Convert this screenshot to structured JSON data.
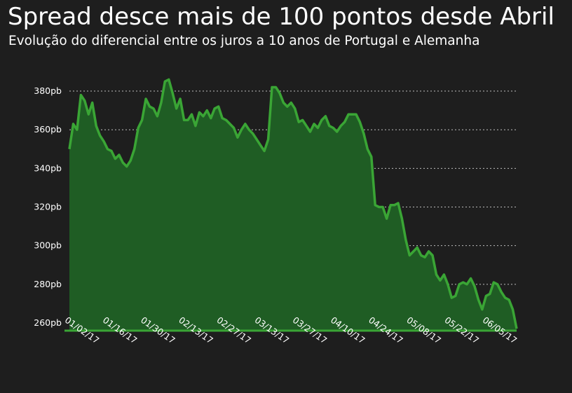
{
  "title": "Spread desce mais de 100 pontos desde Abril",
  "subtitle": "Evolução do diferencial entre os juros a 10 anos de Portugal e Alemanha",
  "colors": {
    "background": "#1e1e1e",
    "line": "#3aa535",
    "fill": "#1f5d24",
    "grid": "#bdbdbd",
    "text": "#ffffff"
  },
  "chart_data": {
    "type": "area",
    "title": "Spread desce mais de 100 pontos desde Abril",
    "subtitle": "Evolução do diferencial entre os juros a 10 anos de Portugal e Alemanha",
    "xlabel": "",
    "ylabel": "",
    "ylim": [
      256,
      388
    ],
    "y_ticks": [
      260,
      280,
      300,
      320,
      340,
      360,
      380
    ],
    "y_tick_labels": [
      "260pb",
      "280pb",
      "300pb",
      "320pb",
      "340pb",
      "360pb",
      "380pb"
    ],
    "x_tick_labels": [
      "01/02/17",
      "01/16/17",
      "01/30/17",
      "02/13/17",
      "02/27/17",
      "03/13/17",
      "03/27/17",
      "04/10/17",
      "04/24/17",
      "05/08/17",
      "05/22/17",
      "06/05/17"
    ],
    "grid": "horizontal dotted",
    "legend": "none",
    "series": [
      {
        "values": [
          350,
          363,
          360,
          378,
          375,
          368,
          374,
          362,
          357,
          354,
          350,
          349,
          345,
          347,
          343,
          341,
          344,
          350,
          361,
          365,
          376,
          372,
          371,
          367,
          374,
          385,
          386,
          379,
          371,
          376,
          365,
          365,
          368,
          362,
          369,
          367,
          370,
          366,
          371,
          372,
          366,
          365,
          363,
          361,
          356,
          360,
          363,
          360,
          358,
          355,
          352,
          349,
          355,
          382,
          382,
          379,
          374,
          372,
          374,
          371,
          364,
          365,
          362,
          359,
          363,
          361,
          365,
          367,
          362,
          361,
          359,
          362,
          364,
          368,
          368,
          368,
          364,
          358,
          350,
          346,
          321,
          320,
          320,
          314,
          321,
          321,
          322,
          314,
          303,
          295,
          297,
          299,
          295,
          294,
          297,
          295,
          285,
          282,
          285,
          280,
          273,
          274,
          280,
          281,
          280,
          283,
          279,
          272,
          267,
          274,
          275,
          281,
          280,
          276,
          273,
          272,
          267,
          257
        ]
      }
    ]
  }
}
